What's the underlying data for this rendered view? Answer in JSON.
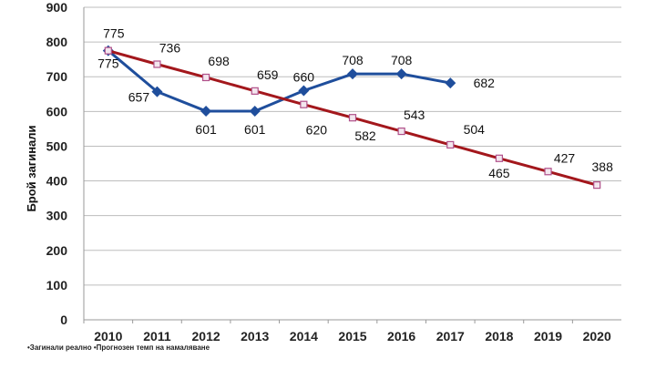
{
  "chart_data": {
    "type": "line",
    "categories": [
      "2010",
      "2011",
      "2012",
      "2013",
      "2014",
      "2015",
      "2016",
      "2017",
      "2018",
      "2019",
      "2020"
    ],
    "ylabel": "Брой загинали",
    "xlabel": "",
    "ylim": [
      0,
      900
    ],
    "yticks": [
      0,
      100,
      200,
      300,
      400,
      500,
      600,
      700,
      800,
      900
    ],
    "grid": true,
    "legend_text": "•Загинали реално  •Прогнозен темп на намаляване",
    "series": [
      {
        "name": "Загинали реално",
        "color": "#1f4e9c",
        "marker": "diamond",
        "values": [
          775,
          657,
          601,
          601,
          660,
          708,
          708,
          682,
          null,
          null,
          null
        ],
        "labels": [
          "775",
          "657",
          "601",
          "601",
          "660",
          "708",
          "708",
          "682",
          null,
          null,
          null
        ]
      },
      {
        "name": "Прогнозен темп на намаляване",
        "color": "#a3171c",
        "marker": "square",
        "values": [
          775,
          736,
          698,
          659,
          620,
          582,
          543,
          504,
          465,
          427,
          388
        ],
        "labels": [
          "775",
          "736",
          "698",
          "659",
          "620",
          "582",
          "543",
          "504",
          "465",
          "427",
          "388"
        ]
      }
    ]
  }
}
